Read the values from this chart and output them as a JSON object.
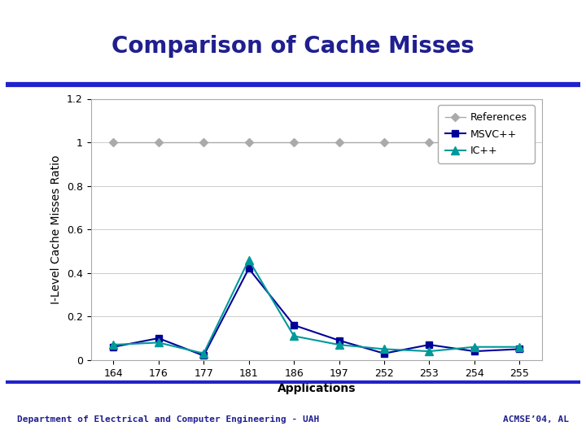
{
  "title": "Comparison of Cache Misses",
  "xlabel": "Applications",
  "ylabel": "I-Level Cache Misses Ratio",
  "categories": [
    "164",
    "176",
    "177",
    "181",
    "186",
    "197",
    "252",
    "253",
    "254",
    "255"
  ],
  "x_positions": [
    0,
    1,
    2,
    3,
    4,
    5,
    6,
    7,
    8,
    9
  ],
  "references": [
    1.0,
    1.0,
    1.0,
    1.0,
    1.0,
    1.0,
    1.0,
    1.0,
    1.0,
    1.0
  ],
  "msvc": [
    0.06,
    0.1,
    0.02,
    0.42,
    0.16,
    0.09,
    0.03,
    0.07,
    0.04,
    0.05
  ],
  "icc": [
    0.07,
    0.08,
    0.03,
    0.46,
    0.11,
    0.07,
    0.05,
    0.04,
    0.06,
    0.06
  ],
  "ref_color": "#aaaaaa",
  "msvc_color": "#000099",
  "icc_color": "#009999",
  "ylim": [
    0,
    1.2
  ],
  "ytick_vals": [
    0,
    0.2,
    0.4,
    0.6,
    0.8,
    1.0,
    1.2
  ],
  "ytick_labels": [
    "0",
    "0.2",
    "0.4",
    "0.6",
    "0.8",
    "1",
    "1.2"
  ],
  "bg_color": "#ffffff",
  "slide_bg": "#ffffff",
  "title_color": "#1f1f8f",
  "footer_left": "Department of Electrical and Computer Engineering - UAH",
  "footer_right": "ACMSE’04, AL",
  "footer_color": "#1f1f8f",
  "divider_color": "#2222cc",
  "title_fontsize": 20,
  "axis_label_fontsize": 10,
  "tick_fontsize": 9,
  "footer_fontsize": 8,
  "legend_fontsize": 9
}
